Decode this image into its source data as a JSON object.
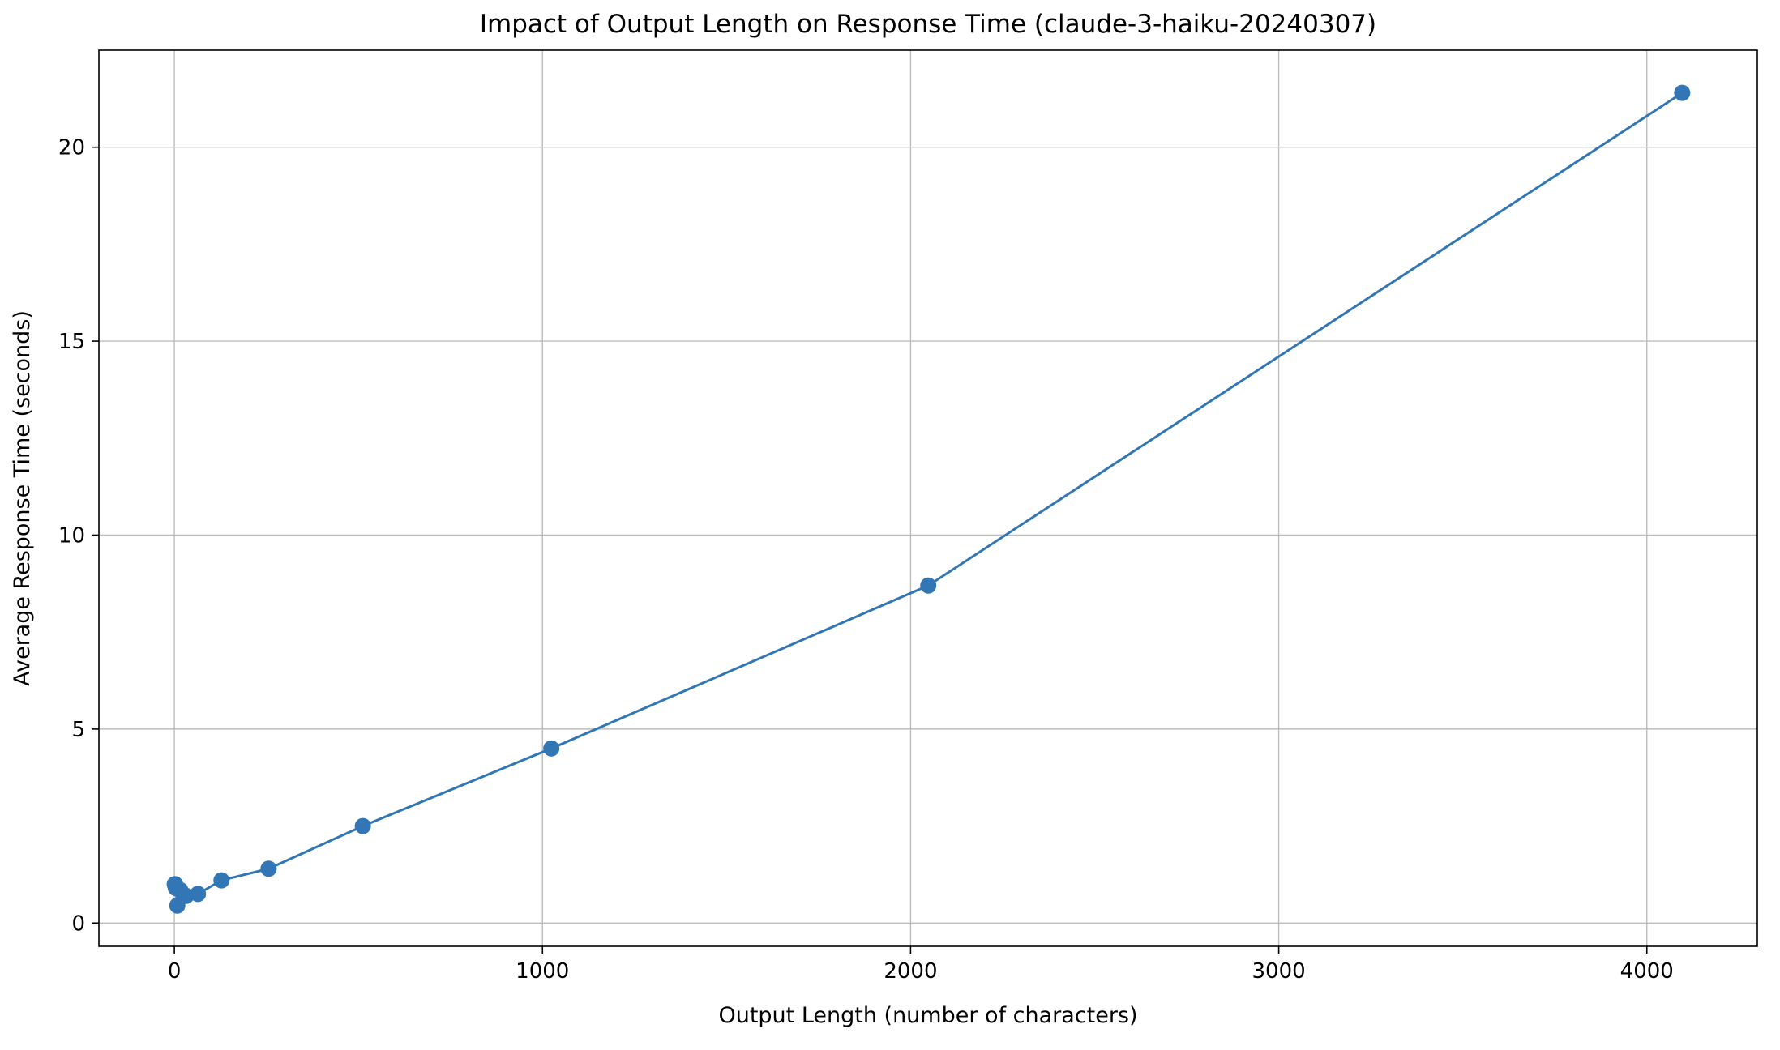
{
  "chart_data": {
    "type": "line",
    "title": "Impact of Output Length on Response Time (claude-3-haiku-20240307)",
    "xlabel": "Output Length (number of characters)",
    "ylabel": "Average Response Time (seconds)",
    "series": [
      {
        "name": "average-response-time",
        "x": [
          1,
          2,
          4,
          8,
          16,
          32,
          64,
          128,
          256,
          512,
          1024,
          2048,
          4096
        ],
        "y": [
          1.0,
          1.0,
          0.9,
          0.45,
          0.85,
          0.7,
          0.75,
          1.1,
          1.4,
          2.5,
          4.5,
          8.7,
          21.4
        ]
      }
    ],
    "xticks": [
      0,
      1000,
      2000,
      3000,
      4000
    ],
    "yticks": [
      0,
      5,
      10,
      15,
      20
    ],
    "xlim": [
      -205,
      4300
    ],
    "ylim": [
      -0.6,
      22.5
    ],
    "grid": true,
    "legend": "none",
    "colors": {
      "line": "#3276b5",
      "marker": "#3276b5",
      "grid": "#bdbdbd",
      "spine": "#000000",
      "background": "#ffffff"
    }
  },
  "layout_hints": {
    "marker_radius": 10,
    "line_width": 3,
    "tick_length": 9
  }
}
